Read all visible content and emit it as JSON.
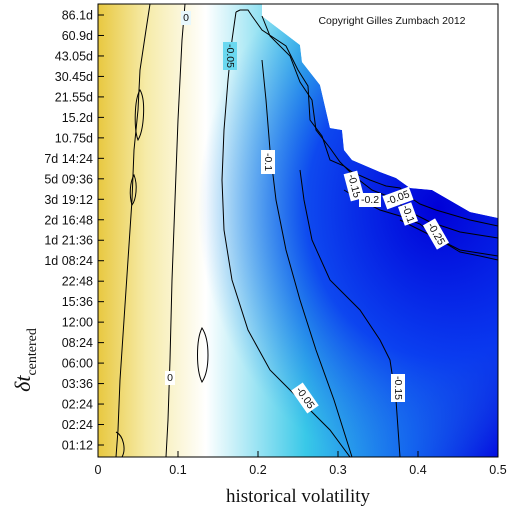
{
  "chart_data": {
    "type": "heatmap",
    "title": "",
    "copyright": "Copyright Gilles Zumbach 2012",
    "xlabel": "historical volatility",
    "ylabel": {
      "main": "δt",
      "subscript": "centered"
    },
    "xlim": [
      0,
      0.5
    ],
    "x_ticks": [
      "0",
      "0.1",
      "0.2",
      "0.3",
      "0.4",
      "0.5"
    ],
    "y_ticks": [
      "01:12",
      "02:24",
      "02:24",
      "03:36",
      "06:00",
      "08:24",
      "12:00",
      "15:36",
      "22:48",
      "1d 08:24",
      "1d 21:36",
      "2d 16:48",
      "3d 19:12",
      "5d 09:36",
      "7d 14:24",
      "10.75d",
      "15.2d",
      "21.55d",
      "30.45d",
      "43.05d",
      "60.9d",
      "86.1d"
    ],
    "colorscale": [
      "#e8c840",
      "#f6eba8",
      "#ffffff",
      "#c8f0f8",
      "#38c8e8",
      "#1060f0",
      "#0000e0"
    ],
    "contour_labels": [
      "0",
      "0",
      "-0.05",
      "-0.1",
      "-0.15",
      "-0.2",
      "-0.05",
      "-0.1",
      "-0.25",
      "-0.05",
      "-0.15"
    ],
    "grid": false
  }
}
